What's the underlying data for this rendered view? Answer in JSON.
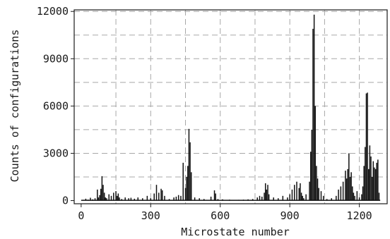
{
  "chart_data": {
    "type": "bar",
    "title": "",
    "xlabel": "Microstate number",
    "ylabel": "Counts of configurations",
    "xlim": [
      -30,
      1320
    ],
    "ylim": [
      -200,
      12100
    ],
    "xticks": [
      0,
      300,
      600,
      900,
      1200
    ],
    "yticks": [
      0,
      3000,
      6000,
      9000,
      12000
    ],
    "xtick_labels": [
      "0",
      "300",
      "600",
      "900",
      "1200"
    ],
    "ytick_labels": [
      "0",
      "3000",
      "6000",
      "9000",
      "12000"
    ],
    "grid": true,
    "legend": "none",
    "colors": {
      "bars": "#111111",
      "grid": "#a8a8a8",
      "axes": "#1a1a1a"
    },
    "series": [
      {
        "x": [
          10,
          20,
          30,
          40,
          50,
          60,
          70,
          75,
          80,
          85,
          90,
          95,
          100,
          105,
          110,
          120,
          130,
          140,
          150,
          155,
          160,
          165,
          175,
          190,
          205,
          215,
          230,
          245,
          265,
          285,
          300,
          315,
          325,
          335,
          345,
          350,
          360,
          380,
          400,
          410,
          420,
          430,
          440,
          450,
          455,
          460,
          465,
          470,
          475,
          490,
          510,
          530,
          560,
          575,
          580,
          590,
          610,
          640,
          680,
          700,
          720,
          740,
          760,
          770,
          780,
          790,
          795,
          800,
          805,
          810,
          830,
          850,
          870,
          890,
          900,
          910,
          920,
          930,
          940,
          945,
          950,
          955,
          960,
          970,
          985,
          990,
          995,
          1000,
          1005,
          1010,
          1015,
          1020,
          1025,
          1035,
          1045,
          1060,
          1080,
          1100,
          1110,
          1120,
          1130,
          1140,
          1145,
          1150,
          1155,
          1160,
          1165,
          1170,
          1175,
          1180,
          1190,
          1200,
          1210,
          1215,
          1220,
          1225,
          1230,
          1235,
          1240,
          1245,
          1250,
          1255,
          1260,
          1265,
          1270,
          1275,
          1280,
          1285
        ],
        "values": [
          50,
          120,
          60,
          180,
          80,
          150,
          700,
          200,
          350,
          750,
          1550,
          1000,
          500,
          200,
          150,
          400,
          300,
          500,
          600,
          300,
          450,
          200,
          100,
          200,
          150,
          180,
          120,
          200,
          150,
          300,
          150,
          450,
          1000,
          500,
          750,
          650,
          300,
          100,
          200,
          250,
          350,
          300,
          2400,
          800,
          1500,
          2200,
          4550,
          3700,
          1800,
          200,
          150,
          100,
          250,
          650,
          450,
          100,
          80,
          60,
          50,
          60,
          80,
          100,
          200,
          300,
          250,
          500,
          1100,
          700,
          1000,
          400,
          200,
          150,
          300,
          200,
          400,
          700,
          1000,
          1200,
          800,
          1100,
          500,
          300,
          150,
          400,
          1200,
          3100,
          4500,
          10900,
          11800,
          6000,
          2200,
          1400,
          800,
          600,
          300,
          100,
          150,
          300,
          700,
          900,
          1200,
          1900,
          1400,
          2000,
          3000,
          1500,
          1800,
          900,
          500,
          300,
          600,
          200,
          400,
          900,
          2200,
          3400,
          6800,
          6850,
          2000,
          3500,
          2800,
          1500,
          2500,
          2100,
          2000,
          2400,
          2600,
          500
        ]
      }
    ]
  }
}
